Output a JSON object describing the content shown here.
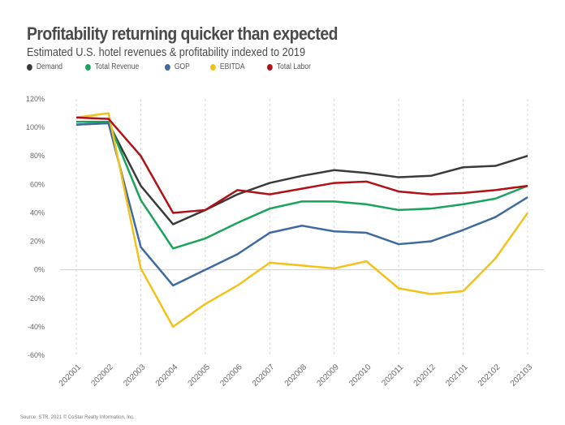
{
  "chart_data": {
    "type": "line",
    "title": "Profitability returning quicker than expected",
    "subtitle": "Estimated U.S. hotel revenues & profitability indexed to 2019",
    "categories": [
      "202001",
      "202002",
      "202003",
      "202004",
      "202005",
      "202006",
      "202007",
      "202008",
      "202009",
      "202010",
      "202011",
      "202012",
      "202101",
      "202102",
      "202103"
    ],
    "y_ticks": [
      "120%",
      "100%",
      "80%",
      "60%",
      "40%",
      "20%",
      "0%",
      "-20%",
      "-40%",
      "-60%"
    ],
    "ylim": [
      -60,
      120
    ],
    "y_unit": "%",
    "grid": "vertical dashed lines at every other category; zero line",
    "legend_position": "top-left",
    "series": [
      {
        "name": "Demand",
        "color": "#3a3a3a",
        "values": [
          102,
          103,
          59,
          32,
          42,
          53,
          61,
          66,
          70,
          68,
          65,
          66,
          72,
          73,
          80
        ]
      },
      {
        "name": "Total Revenue",
        "color": "#1aa35a",
        "values": [
          104,
          104,
          49,
          15,
          22,
          33,
          43,
          48,
          48,
          46,
          42,
          43,
          46,
          50,
          59
        ]
      },
      {
        "name": "GOP",
        "color": "#3e6aa0",
        "values": [
          102,
          103,
          16,
          -11,
          0,
          11,
          26,
          31,
          27,
          26,
          18,
          20,
          28,
          37,
          51
        ]
      },
      {
        "name": "EBITDA",
        "color": "#f2c21b",
        "values": [
          107,
          110,
          1,
          -40,
          -24,
          -11,
          5,
          3,
          1,
          6,
          -13,
          -17,
          -15,
          8,
          40
        ]
      },
      {
        "name": "Total Labor",
        "color": "#b01116",
        "values": [
          107,
          106,
          80,
          40,
          42,
          56,
          53,
          57,
          61,
          62,
          55,
          53,
          54,
          56,
          59
        ]
      }
    ],
    "source": "Source: STR. 2021 © CoStar Realty Information, Inc."
  }
}
